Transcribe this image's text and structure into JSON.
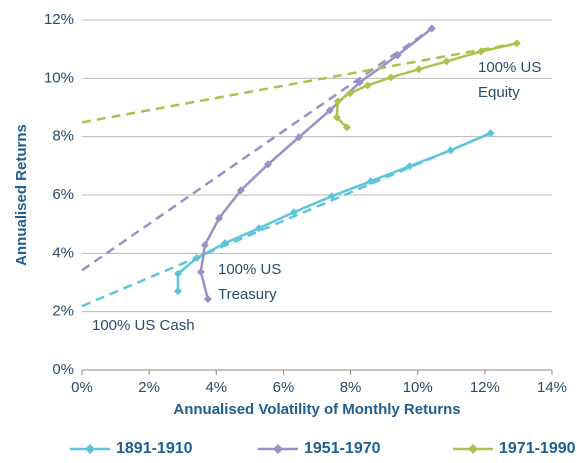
{
  "chart_data": {
    "type": "line",
    "xlabel": "Annualised Volatility of Monthly Returns",
    "ylabel": "Annualised Returns",
    "xlim": [
      0,
      14
    ],
    "ylim": [
      0,
      12
    ],
    "xticks": [
      {
        "value": 0,
        "label": "0%"
      },
      {
        "value": 2,
        "label": "2%"
      },
      {
        "value": 4,
        "label": "4%"
      },
      {
        "value": 6,
        "label": "6%"
      },
      {
        "value": 8,
        "label": "8%"
      },
      {
        "value": 10,
        "label": "10%"
      },
      {
        "value": 12,
        "label": "12%"
      },
      {
        "value": 14,
        "label": "14%"
      }
    ],
    "yticks": [
      {
        "value": 0,
        "label": "0%"
      },
      {
        "value": 2,
        "label": "2%"
      },
      {
        "value": 4,
        "label": "4%"
      },
      {
        "value": 6,
        "label": "6%"
      },
      {
        "value": 8,
        "label": "8%"
      },
      {
        "value": 10,
        "label": "10%"
      },
      {
        "value": 12,
        "label": "12%"
      }
    ],
    "grid": true,
    "legend": "bottom",
    "series": [
      {
        "name": "1891-1910",
        "color": "#5ec6dc",
        "x": [
          2.86,
          2.86,
          3.42,
          4.26,
          5.27,
          6.31,
          7.44,
          8.6,
          9.76,
          10.98,
          12.17
        ],
        "values": [
          2.7,
          3.3,
          3.84,
          4.35,
          4.86,
          5.41,
          5.96,
          6.47,
          6.99,
          7.53,
          8.12
        ],
        "dashed": {
          "x": [
            0,
            12.17
          ],
          "values": [
            2.19,
            8.12
          ]
        }
      },
      {
        "name": "1951-1970",
        "color": "#9d8fc7",
        "x": [
          3.75,
          3.54,
          3.66,
          4.08,
          4.73,
          5.54,
          6.46,
          7.38,
          8.27,
          9.4,
          10.42
        ],
        "values": [
          2.43,
          3.36,
          4.28,
          5.2,
          6.16,
          7.05,
          7.98,
          8.9,
          9.86,
          10.79,
          11.71
        ],
        "dashed": {
          "x": [
            0,
            10.42
          ],
          "values": [
            3.42,
            11.71
          ]
        }
      },
      {
        "name": "1971-1990",
        "color": "#a9c44c",
        "x": [
          7.89,
          7.59,
          7.62,
          7.98,
          8.51,
          9.2,
          10.03,
          10.86,
          11.88,
          12.95
        ],
        "values": [
          8.32,
          8.66,
          9.21,
          9.49,
          9.76,
          10.03,
          10.31,
          10.58,
          10.92,
          11.2
        ],
        "dashed": {
          "x": [
            0,
            12.95
          ],
          "values": [
            8.49,
            11.2
          ]
        }
      }
    ],
    "annotations": [
      [
        "100% US",
        "Equity"
      ],
      [
        "100% US",
        "Treasury"
      ],
      [
        "100% US Cash"
      ]
    ]
  }
}
